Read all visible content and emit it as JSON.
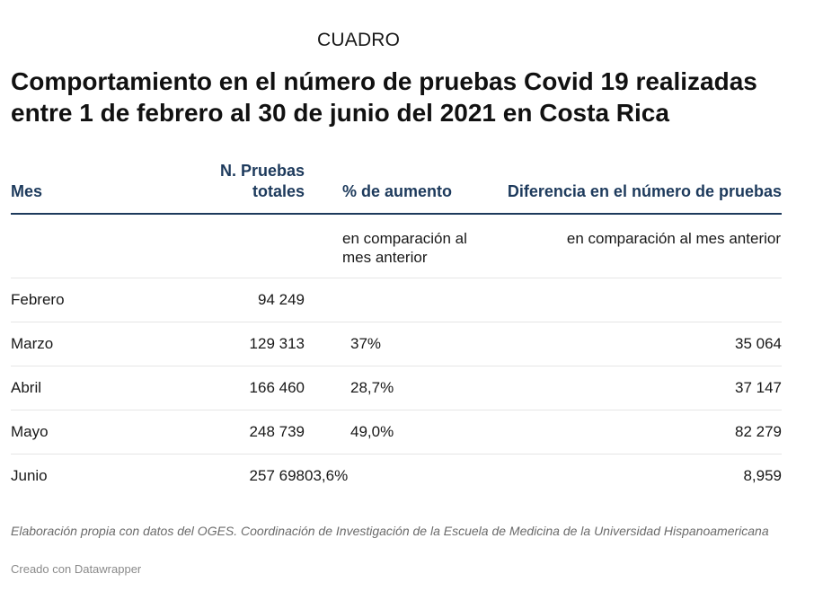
{
  "header": {
    "kicker": "CUADRO",
    "title": "Comportamiento en el número de pruebas Covid 19 realizadas entre 1 de febrero al 30 de junio del 2021 en Costa Rica"
  },
  "chart_data": {
    "type": "table",
    "columns": [
      "Mes",
      "N. Pruebas totales",
      "% de aumento",
      "Diferencia en el número de pruebas"
    ],
    "subheaders": [
      "",
      "",
      "en comparación al mes anterior",
      "en comparación al mes anterior"
    ],
    "rows": [
      {
        "mes": "Febrero",
        "pruebas": "94 249",
        "aumento": "",
        "diferencia": ""
      },
      {
        "mes": "Marzo",
        "pruebas": "129 313",
        "aumento": "37%",
        "diferencia": "35 064"
      },
      {
        "mes": "Abril",
        "pruebas": "166 460",
        "aumento": "28,7%",
        "diferencia": "37 147"
      },
      {
        "mes": "Mayo",
        "pruebas": "248 739",
        "aumento": "49,0%",
        "diferencia": "82 279"
      },
      {
        "mes": "Junio",
        "pruebas": "257 698",
        "aumento": "03,6%",
        "diferencia": "8,959"
      }
    ]
  },
  "footer": {
    "notes": "Elaboración propia con datos del OGES. Coordinación de Investigación de la Escuela de Medicina de la Universidad Hispanoamericana",
    "credit": "Creado con Datawrapper"
  },
  "colors": {
    "header_text": "#1d3a5c",
    "header_rule": "#1d3a5c",
    "row_divider": "#e6e6e6",
    "notes_text": "#6b6b6b"
  }
}
